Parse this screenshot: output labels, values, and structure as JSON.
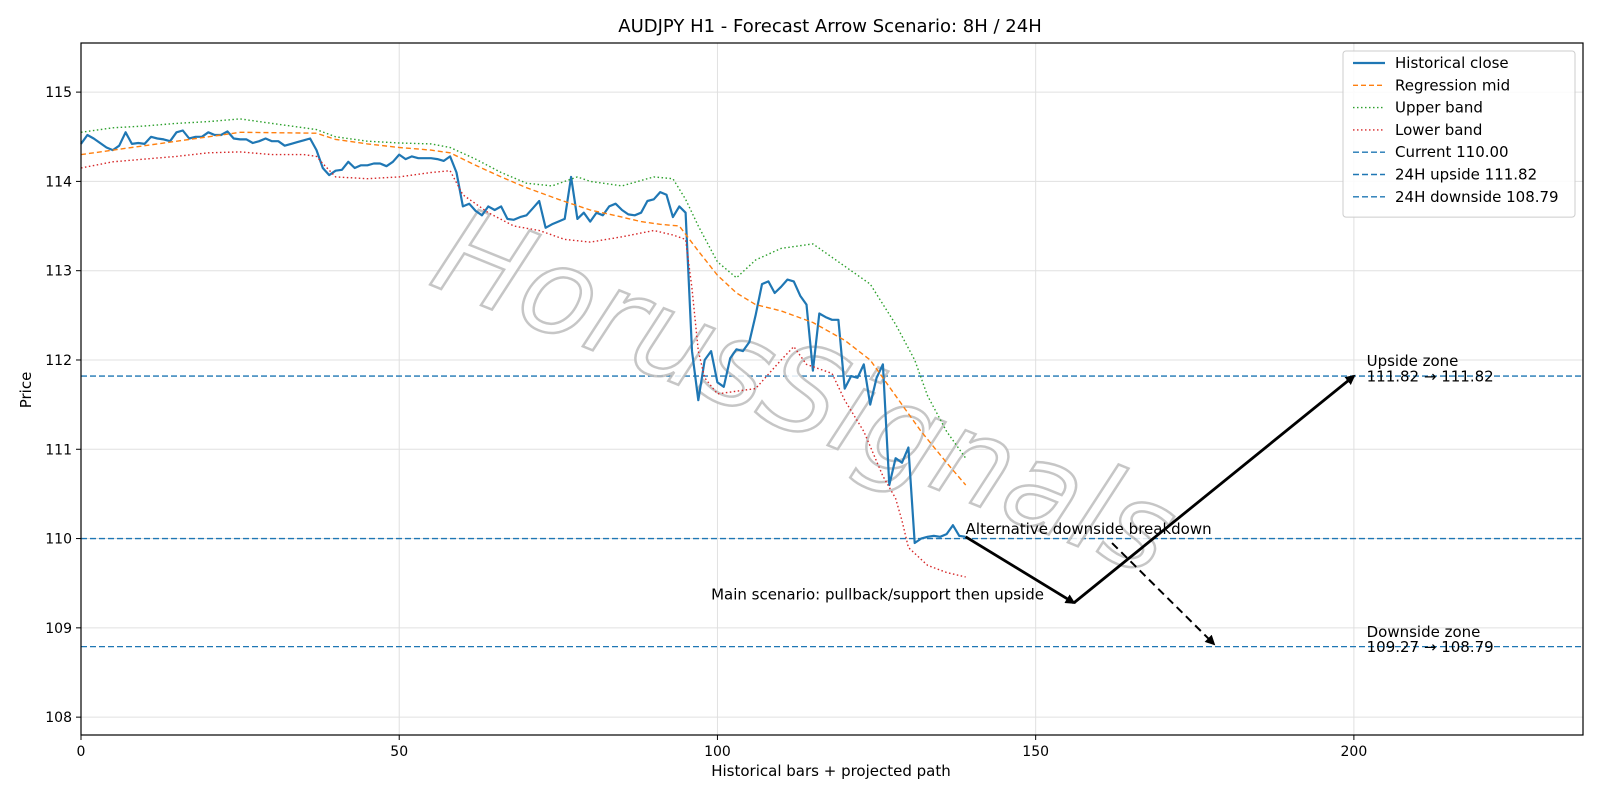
{
  "chart_data": {
    "type": "line",
    "title": "AUDJPY H1 - Forecast Arrow Scenario: 8H / 24H",
    "xlabel": "Historical bars + projected path",
    "ylabel": "Price",
    "xlim": [
      0,
      236
    ],
    "ylim": [
      107.8,
      115.55
    ],
    "xticks": [
      0,
      50,
      100,
      150,
      200
    ],
    "yticks": [
      108,
      109,
      110,
      111,
      112,
      113,
      114,
      115
    ],
    "grid": true,
    "legend_position": "top-right",
    "colors": {
      "historical": "#1f77b4",
      "regression": "#ff7f0e",
      "upper": "#2ca02c",
      "lower": "#d62728",
      "hline": "#1f77b4",
      "arrow": "#000000",
      "watermark_stroke": "#bdbdbd"
    },
    "series": [
      {
        "name": "Historical close",
        "style": "solid",
        "x": [
          0,
          1,
          2,
          3,
          4,
          5,
          6,
          7,
          8,
          9,
          10,
          11,
          12,
          13,
          14,
          15,
          16,
          17,
          18,
          19,
          20,
          21,
          22,
          23,
          24,
          25,
          26,
          27,
          28,
          29,
          30,
          31,
          32,
          33,
          34,
          35,
          36,
          37,
          38,
          39,
          40,
          41,
          42,
          43,
          44,
          45,
          46,
          47,
          48,
          49,
          50,
          51,
          52,
          53,
          54,
          55,
          56,
          57,
          58,
          59,
          60,
          61,
          62,
          63,
          64,
          65,
          66,
          67,
          68,
          69,
          70,
          71,
          72,
          73,
          74,
          75,
          76,
          77,
          78,
          79,
          80,
          81,
          82,
          83,
          84,
          85,
          86,
          87,
          88,
          89,
          90,
          91,
          92,
          93,
          94,
          95,
          96,
          97,
          98,
          99,
          100,
          101,
          102,
          103,
          104,
          105,
          106,
          107,
          108,
          109,
          110,
          111,
          112,
          113,
          114,
          115,
          116,
          117,
          118,
          119,
          120,
          121,
          122,
          123,
          124,
          125,
          126,
          127,
          128,
          129,
          130,
          131,
          132,
          133,
          134,
          135,
          136,
          137,
          138,
          139
        ],
        "y": [
          114.42,
          114.52,
          114.48,
          114.43,
          114.38,
          114.35,
          114.4,
          114.55,
          114.42,
          114.43,
          114.42,
          114.5,
          114.48,
          114.47,
          114.45,
          114.55,
          114.57,
          114.48,
          114.5,
          114.5,
          114.55,
          114.52,
          114.52,
          114.56,
          114.48,
          114.47,
          114.47,
          114.43,
          114.45,
          114.48,
          114.45,
          114.45,
          114.4,
          114.42,
          114.44,
          114.46,
          114.48,
          114.35,
          114.15,
          114.07,
          114.12,
          114.13,
          114.22,
          114.15,
          114.18,
          114.18,
          114.2,
          114.2,
          114.17,
          114.22,
          114.3,
          114.25,
          114.28,
          114.26,
          114.26,
          114.26,
          114.25,
          114.23,
          114.28,
          114.1,
          113.72,
          113.75,
          113.67,
          113.62,
          113.72,
          113.68,
          113.72,
          113.58,
          113.57,
          113.6,
          113.62,
          113.7,
          113.78,
          113.48,
          113.52,
          113.55,
          113.58,
          114.05,
          113.58,
          113.65,
          113.55,
          113.65,
          113.62,
          113.72,
          113.75,
          113.68,
          113.63,
          113.62,
          113.65,
          113.78,
          113.8,
          113.88,
          113.85,
          113.6,
          113.72,
          113.65,
          112.1,
          111.55,
          112.0,
          112.1,
          111.75,
          111.7,
          112.02,
          112.12,
          112.1,
          112.2,
          112.5,
          112.85,
          112.88,
          112.75,
          112.82,
          112.9,
          112.88,
          112.72,
          112.62,
          111.88,
          112.52,
          112.48,
          112.45,
          112.45,
          111.68,
          111.82,
          111.8,
          111.95,
          111.5,
          111.8,
          111.95,
          110.6,
          110.9,
          110.85,
          111.02,
          109.95,
          110.0,
          110.02,
          110.03,
          110.02,
          110.05,
          110.15,
          110.03,
          110.02
        ]
      },
      {
        "name": "Regression mid",
        "style": "dashed",
        "x": [
          0,
          10,
          20,
          25,
          37,
          40,
          45,
          50,
          55,
          58,
          62,
          66,
          70,
          75,
          80,
          85,
          88,
          91,
          94,
          97,
          100,
          103,
          106,
          110,
          115,
          120,
          124,
          128,
          132,
          136,
          139
        ],
        "y": [
          114.3,
          114.4,
          114.5,
          114.55,
          114.54,
          114.47,
          114.42,
          114.38,
          114.35,
          114.32,
          114.18,
          114.05,
          113.93,
          113.8,
          113.68,
          113.6,
          113.55,
          113.52,
          113.5,
          113.22,
          112.95,
          112.75,
          112.62,
          112.55,
          112.42,
          112.22,
          112.0,
          111.6,
          111.2,
          110.85,
          110.6
        ]
      },
      {
        "name": "Upper band",
        "style": "dotted",
        "x": [
          0,
          5,
          10,
          15,
          20,
          25,
          30,
          35,
          37,
          40,
          45,
          50,
          55,
          58,
          62,
          66,
          70,
          74,
          76,
          78,
          80,
          85,
          90,
          93,
          95,
          97,
          100,
          103,
          106,
          110,
          115,
          120,
          124,
          128,
          131,
          133,
          136,
          139
        ],
        "y": [
          114.55,
          114.6,
          114.62,
          114.65,
          114.67,
          114.7,
          114.65,
          114.6,
          114.58,
          114.5,
          114.45,
          114.43,
          114.42,
          114.38,
          114.25,
          114.1,
          113.98,
          113.95,
          114.0,
          114.05,
          114.0,
          113.95,
          114.05,
          114.03,
          113.8,
          113.5,
          113.1,
          112.92,
          113.12,
          113.25,
          113.3,
          113.05,
          112.85,
          112.4,
          112.0,
          111.6,
          111.2,
          110.9
        ]
      },
      {
        "name": "Lower band",
        "style": "dotted",
        "x": [
          0,
          5,
          10,
          15,
          20,
          25,
          30,
          35,
          37,
          38,
          40,
          45,
          50,
          55,
          58,
          60,
          64,
          68,
          72,
          76,
          80,
          85,
          90,
          93,
          95,
          96,
          97,
          98,
          100,
          103,
          106,
          110,
          112,
          114,
          118,
          120,
          123,
          126,
          128,
          129,
          130,
          133,
          136,
          139
        ],
        "y": [
          114.15,
          114.22,
          114.25,
          114.28,
          114.32,
          114.33,
          114.3,
          114.3,
          114.28,
          114.2,
          114.05,
          114.03,
          114.05,
          114.1,
          114.12,
          113.85,
          113.65,
          113.5,
          113.45,
          113.35,
          113.32,
          113.38,
          113.45,
          113.4,
          113.35,
          112.8,
          112.1,
          111.8,
          111.62,
          111.65,
          111.68,
          112.0,
          112.15,
          111.95,
          111.85,
          111.55,
          111.2,
          110.7,
          110.45,
          110.2,
          109.9,
          109.7,
          109.62,
          109.57
        ]
      }
    ],
    "hlines": [
      {
        "name": "Current 110.00",
        "y": 110.0
      },
      {
        "name": "24H upside 111.82",
        "y": 111.82
      },
      {
        "name": "24H downside 108.79",
        "y": 108.79
      }
    ],
    "arrows": [
      {
        "from": [
          139,
          110.02
        ],
        "to": [
          156,
          109.28
        ],
        "style": "solid"
      },
      {
        "from": [
          156,
          109.28
        ],
        "to": [
          200,
          111.82
        ],
        "style": "solid"
      },
      {
        "from": [
          162,
          109.95
        ],
        "to": [
          178,
          108.82
        ],
        "style": "dashed"
      }
    ],
    "annotations": [
      {
        "text": "Alternative downside breakdown",
        "x": 139,
        "y": 110.05
      },
      {
        "text": "Main scenario: pullback/support then upside",
        "x": 99,
        "y": 109.32
      },
      {
        "text": "Upside zone",
        "x": 202,
        "y": 111.93
      },
      {
        "text": "111.82 → 111.82",
        "x": 202,
        "y": 111.76
      },
      {
        "text": "Downside zone",
        "x": 202,
        "y": 108.9
      },
      {
        "text": "109.27 → 108.79",
        "x": 202,
        "y": 108.73
      }
    ],
    "watermark": "HorusSignals"
  }
}
